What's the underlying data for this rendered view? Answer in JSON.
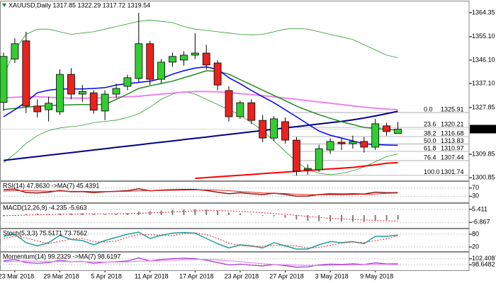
{
  "chart_data": [
    {
      "type": "candlestick",
      "title": "XAUUSD,Daily  1317.85 1322.29 1317.72 1319.54",
      "categories": [
        null,
        "23 Mar 2018",
        null,
        null,
        null,
        "29 Mar 2018",
        null,
        null,
        null,
        "5 Apr 2018",
        null,
        null,
        null,
        "11 Apr 2018",
        null,
        null,
        null,
        "17 Apr 2018",
        null,
        null,
        null,
        "23 Apr 2018",
        null,
        null,
        null,
        "27 Apr 2018",
        null,
        null,
        null,
        "3 May 2018",
        null,
        null,
        null,
        "9 May 2018",
        null,
        null
      ],
      "open": [
        1329.8,
        1346.5,
        1353.5,
        1328.4,
        1327.0,
        1326.2,
        1340.6,
        1333.0,
        1333.5,
        1326.5,
        1333.0,
        1336.0,
        1339.0,
        1352.4,
        1338.7,
        1345.3,
        1346.1,
        1348.0,
        1348.8,
        1345.0,
        1334.4,
        1324.3,
        1329.7,
        1322.9,
        1316.1,
        1322.4,
        1315.3,
        1303.9,
        1303.9,
        1311.5,
        1314.5,
        1313.9,
        1314.8,
        1312.6,
        1320.8,
        1317.85
      ],
      "high": [
        1349.0,
        1354.5,
        1357.0,
        1331.0,
        1332.0,
        1342.5,
        1343.0,
        1336.5,
        1334.5,
        1334.5,
        1337.0,
        1340.5,
        1364.3,
        1353.5,
        1346.5,
        1349.0,
        1349.5,
        1356.5,
        1352.0,
        1346.0,
        1336.0,
        1330.5,
        1331.0,
        1325.0,
        1324.5,
        1324.0,
        1316.5,
        1306.0,
        1313.5,
        1316.0,
        1316.0,
        1317.0,
        1316.5,
        1323.5,
        1322.0,
        1322.29
      ],
      "low": [
        1326.5,
        1345.0,
        1325.7,
        1324.0,
        1322.5,
        1325.0,
        1331.0,
        1330.0,
        1325.5,
        1323.0,
        1331.5,
        1334.5,
        1337.5,
        1336.5,
        1337.0,
        1343.5,
        1344.0,
        1346.5,
        1342.5,
        1334.5,
        1322.5,
        1323.5,
        1321.5,
        1314.5,
        1315.0,
        1314.0,
        1301.7,
        1302.0,
        1303.0,
        1310.0,
        1311.5,
        1312.0,
        1310.5,
        1311.5,
        1317.0,
        1317.72
      ],
      "close": [
        1347.5,
        1352.4,
        1328.4,
        1326.2,
        1329.5,
        1340.6,
        1333.0,
        1334.0,
        1326.8,
        1333.0,
        1335.2,
        1339.3,
        1352.4,
        1338.7,
        1345.3,
        1347.5,
        1348.0,
        1348.8,
        1344.2,
        1336.5,
        1324.3,
        1329.7,
        1322.9,
        1316.1,
        1323.5,
        1315.3,
        1303.3,
        1304.4,
        1312.0,
        1314.8,
        1313.9,
        1314.8,
        1312.6,
        1321.6,
        1318.6,
        1319.54
      ],
      "up_color": "#33cc33",
      "down_color": "#e8231e",
      "series": [
        {
          "color": "#2a9d2a",
          "width": 0.8,
          "values": [
            1340,
            1350,
            1356,
            1358,
            1358,
            1357,
            1356,
            1356.5,
            1357,
            1358,
            1359,
            1360,
            1361,
            1361.5,
            1361,
            1360.5,
            1359,
            1358,
            1357.5,
            1357,
            1356.5,
            1356,
            1355.8,
            1356,
            1357,
            1358,
            1358.3,
            1358,
            1357,
            1356,
            1355,
            1354,
            1352,
            1350,
            1348,
            1347
          ]
        },
        {
          "color": "#2a9d2a",
          "width": 0.8,
          "values": [
            1306.6,
            1310,
            1314,
            1317,
            1319,
            1320,
            1320.5,
            1321,
            1322,
            1322.5,
            1323,
            1324,
            1325.5,
            1328,
            1331,
            1333,
            1334,
            1333,
            1331,
            1329,
            1327,
            1325,
            1322,
            1319,
            1315,
            1311,
            1307,
            1304,
            1302.5,
            1302,
            1302.5,
            1303.5,
            1305,
            1307,
            1309,
            1310
          ]
        },
        {
          "color": "#ee82ee",
          "width": 2,
          "values": [
            1331.5,
            1331.8,
            1332,
            1332,
            1331.8,
            1331.6,
            1331.5,
            1331.5,
            1331.5,
            1331.6,
            1331.8,
            1332,
            1332.2,
            1332.6,
            1333,
            1333.4,
            1333.8,
            1334,
            1334,
            1333.9,
            1333.6,
            1333.2,
            1332.8,
            1332.4,
            1332,
            1331.5,
            1331,
            1330.5,
            1330,
            1329.5,
            1329,
            1328.5,
            1328,
            1327.6,
            1327.2,
            1327
          ]
        },
        {
          "color": "#00008b",
          "width": 2,
          "values": [
            1307.5,
            1308.0,
            1308.5,
            1309.0,
            1309.5,
            1310.0,
            1310.5,
            1311.0,
            1311.5,
            1312.0,
            1312.5,
            1313.0,
            1313.5,
            1314.0,
            1314.5,
            1315.0,
            1315.5,
            1316.0,
            1316.5,
            1317.0,
            1317.5,
            1318.0,
            1318.5,
            1319.0,
            1319.5,
            1320.0,
            1320.5,
            1321.0,
            1321.5,
            1322.0,
            1322.5,
            1323.1,
            1323.8,
            1324.6,
            1325.5,
            1326.4
          ]
        },
        {
          "color": "#228b22",
          "width": 1.5,
          "values": [
            1327.1,
            1327.5,
            1328,
            1328.3,
            1328.6,
            1328.8,
            1328.9,
            1329,
            1329,
            1329,
            1331,
            1333,
            1335.2,
            1336.2,
            1337.1,
            1338,
            1339.3,
            1340.6,
            1342,
            1341.8,
            1340.7,
            1338.6,
            1336.6,
            1334.5,
            1332.5,
            1330.5,
            1328.4,
            1326.7,
            1325.1,
            1323.7,
            1322.4,
            1321.3,
            1320.2,
            1319.8,
            1319.4,
            1319.2
          ]
        },
        {
          "color": "#0000ff",
          "width": 1.5,
          "values": [
            1324.3,
            1327,
            1330,
            1333.5,
            1334.5,
            1335,
            1335,
            1335,
            1335.2,
            1335.5,
            1336.5,
            1337,
            1337.5,
            1338,
            1339,
            1340.7,
            1342,
            1343,
            1343.5,
            1342.5,
            1339.3,
            1337,
            1334.4,
            1332,
            1329.7,
            1327,
            1324.3,
            1321.5,
            1318.8,
            1317.2,
            1316.1,
            1315,
            1313.9,
            1313.6,
            1313.4,
            1313.3
          ]
        },
        {
          "color": "#ff0000",
          "width": 2,
          "values": [
            null,
            null,
            null,
            null,
            null,
            null,
            null,
            null,
            null,
            null,
            null,
            null,
            null,
            null,
            null,
            null,
            null,
            1300.6,
            1300.9,
            1301.2,
            1301.5,
            1301.8,
            1302.1,
            1302.4,
            1302.7,
            1303,
            1303.3,
            1303.6,
            1303.9,
            1304.2,
            1304.5,
            1304.8,
            1305.3,
            1305.8,
            1306.4,
            1306.7
          ]
        }
      ],
      "fibonacci": [
        {
          "level": "0.0",
          "value": 1325.91
        },
        {
          "level": "23.6",
          "value": 1320.21
        },
        {
          "level": "38.2",
          "value": 1316.68
        },
        {
          "level": "50.0",
          "value": 1313.83
        },
        {
          "level": "61.8",
          "value": 1310.97
        },
        {
          "level": "76.4",
          "value": 1307.44
        },
        {
          "level": "100.0",
          "value": 1301.74
        }
      ],
      "last_price": 1319.54,
      "ylim": [
        1299.8,
        1368.4
      ],
      "yticks": [
        1364.35,
        {
          "value": 1355.1,
          "label": "1355.10"
        },
        {
          "value": 1346.1,
          "label": "1346.10"
        },
        {
          "value": 1337.1,
          "label": "1337.10"
        },
        1327.85,
        1309.85,
        1300.85
      ]
    },
    {
      "type": "line",
      "title": "RSI(14) 47.8630 ->MA(7) 45.4391",
      "ylim": [
        0,
        97
      ],
      "yticks": [
        70,
        30
      ],
      "series": [
        {
          "color": "#8b1a1a",
          "width": 1.5,
          "values": [
            62,
            65,
            48,
            46,
            50,
            58,
            52,
            53,
            47,
            52,
            54,
            57,
            66,
            56,
            60,
            62,
            63,
            63,
            58,
            50,
            42,
            47,
            42,
            38,
            45,
            39,
            30,
            31,
            38,
            42,
            41,
            42,
            41,
            50,
            47,
            47.863
          ]
        },
        {
          "color": "#e8231e",
          "width": 1,
          "values": [
            55,
            57,
            57,
            56,
            55,
            55,
            54,
            54,
            53,
            53,
            53,
            54,
            56,
            57,
            58,
            59,
            60,
            61,
            61,
            60,
            57,
            53,
            50,
            46,
            45,
            43,
            40,
            38,
            37,
            37,
            37,
            38,
            39,
            41,
            44,
            45.4391
          ]
        }
      ]
    },
    {
      "type": "bar",
      "title": "MACD(12,26,9) -4.235 -5.663",
      "ylim": [
        -12,
        10
      ],
      "yticks": [
        5.411,
        -6.867
      ],
      "series": [
        {
          "color": "#808080",
          "mark": "bar",
          "values": [
            -1,
            0,
            1,
            1.5,
            1,
            1.5,
            1.6,
            1.8,
            1.2,
            1,
            1.2,
            1.8,
            3.5,
            3.6,
            4.2,
            4.9,
            5.3,
            5.6,
            5.2,
            4.2,
            2.5,
            1.5,
            0.5,
            -0.8,
            -1.2,
            -2.5,
            -4.2,
            -5.5,
            -5.8,
            -5.9,
            -6.1,
            -6.2,
            -6.3,
            -5.4,
            -4.8,
            -4.235
          ]
        },
        {
          "color": "#e8231e",
          "width": 1,
          "dash": true,
          "values": [
            -0.5,
            -0.4,
            0,
            0.3,
            0.5,
            0.7,
            0.9,
            1.1,
            1.2,
            1.2,
            1.2,
            1.3,
            1.7,
            2.1,
            2.5,
            3,
            3.5,
            3.9,
            4.2,
            4.2,
            3.9,
            3.5,
            2.9,
            2.2,
            1.5,
            0.7,
            -0.3,
            -1.3,
            -2.2,
            -3,
            -3.6,
            -4.2,
            -4.6,
            -5,
            -5.4,
            -5.663
          ]
        }
      ]
    },
    {
      "type": "line",
      "title": "Stoch(5,3,3) 75.5171 73.7562",
      "ylim": [
        0,
        100
      ],
      "yticks": [
        80,
        20
      ],
      "series": [
        {
          "color": "#20a0a0",
          "width": 1.5,
          "values": [
            70,
            80,
            40,
            25,
            40,
            75,
            55,
            50,
            30,
            50,
            65,
            80,
            90,
            60,
            75,
            85,
            88,
            85,
            60,
            35,
            15,
            30,
            25,
            15,
            40,
            25,
            10,
            10,
            30,
            45,
            40,
            45,
            35,
            70,
            70,
            75.5171
          ]
        },
        {
          "color": "#e8231e",
          "width": 1,
          "dash": true,
          "values": [
            60,
            70,
            63,
            48,
            35,
            47,
            57,
            60,
            45,
            43,
            48,
            65,
            78,
            77,
            75,
            73,
            83,
            86,
            78,
            60,
            37,
            27,
            23,
            23,
            27,
            27,
            25,
            15,
            17,
            28,
            38,
            43,
            40,
            50,
            58,
            73.7562
          ]
        }
      ]
    },
    {
      "type": "line",
      "title": "Momentum(14) 99.2329 ->MA(7) 98.6197",
      "ylim": [
        95,
        106
      ],
      "yticks": [
        102.4087,
        98.6482
      ],
      "series": [
        {
          "color": "#9932cc",
          "width": 1.2,
          "values": [
            101,
            102,
            100,
            99.5,
            100,
            101.5,
            100.5,
            100.8,
            99.5,
            100.2,
            100.5,
            101,
            103,
            101,
            102,
            102.5,
            102.8,
            102.5,
            101.5,
            100,
            98.5,
            99,
            98.3,
            97.8,
            98.8,
            98,
            97,
            97.2,
            98.5,
            99,
            98.8,
            99.2,
            98.7,
            99.8,
            99.1,
            99.2329
          ]
        },
        {
          "color": "#ee82ee",
          "width": 1.2,
          "values": [
            100.5,
            100.8,
            101,
            100.8,
            100.6,
            100.7,
            100.6,
            100.6,
            100.4,
            100.3,
            100.3,
            100.4,
            100.8,
            101,
            101.2,
            101.5,
            101.8,
            102,
            102,
            101.7,
            101.1,
            100.6,
            99.9,
            99.2,
            98.8,
            98.5,
            98.3,
            98.1,
            98.1,
            98.2,
            98.3,
            98.5,
            98.6,
            98.8,
            98.8,
            98.6197
          ]
        }
      ]
    }
  ]
}
